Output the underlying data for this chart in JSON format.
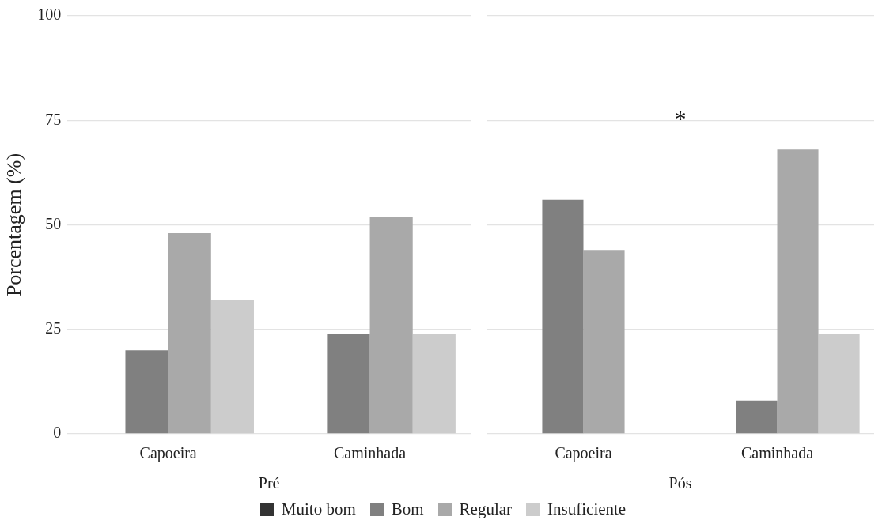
{
  "chart_data": [
    {
      "type": "bar",
      "xlabel": "Pré",
      "ylabel": "Porcentagem (%)",
      "categories": [
        "Capoeira",
        "Caminhada"
      ],
      "series": [
        {
          "name": "Muito bom",
          "color": "#333333",
          "values": [
            0,
            0
          ]
        },
        {
          "name": "Bom",
          "color": "#808080",
          "values": [
            20,
            24
          ]
        },
        {
          "name": "Regular",
          "color": "#a9a9a9",
          "values": [
            48,
            52
          ]
        },
        {
          "name": "Insuficiente",
          "color": "#cccccc",
          "values": [
            32,
            24
          ]
        }
      ],
      "ylim": [
        0,
        100
      ],
      "yticks": [
        0,
        25,
        50,
        75,
        100
      ],
      "grid": "y",
      "legend": "bottom"
    },
    {
      "type": "bar",
      "xlabel": "Pós",
      "categories": [
        "Capoeira",
        "Caminhada"
      ],
      "series": [
        {
          "color": "#333333",
          "values": [
            0,
            0
          ]
        },
        {
          "color": "#808080",
          "values": [
            56,
            8
          ]
        },
        {
          "color": "#a9a9a9",
          "values": [
            44,
            68
          ]
        },
        {
          "color": "#cccccc",
          "values": [
            0,
            24
          ]
        }
      ],
      "ylim": [
        0,
        100
      ],
      "yticks": [
        0,
        25,
        50,
        75,
        100
      ],
      "grid": "y",
      "tick_labels": "x",
      "annotations": [
        "*"
      ]
    }
  ]
}
